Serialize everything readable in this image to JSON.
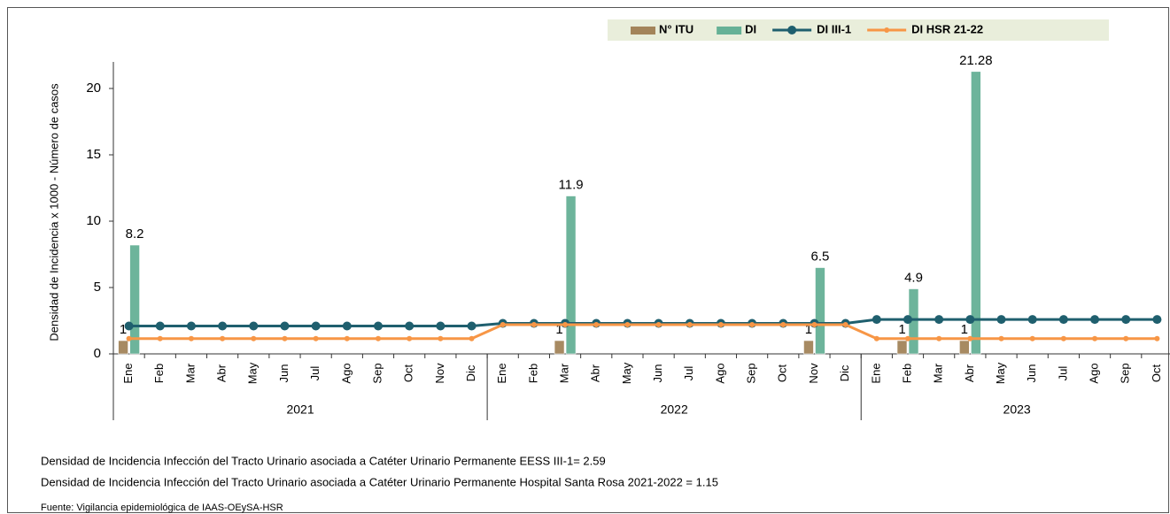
{
  "chart_data": {
    "type": "bar-line",
    "y_label": "Densidad de Incidencia x 1000 - Número de casos",
    "ylim": [
      0,
      22
    ],
    "yticks": [
      0,
      5,
      10,
      15,
      20
    ],
    "category_groups": [
      {
        "label": "2021",
        "categories": [
          "Ene",
          "Feb",
          "Mar",
          "Abr",
          "May",
          "Jun",
          "Jul",
          "Ago",
          "Sep",
          "Oct",
          "Nov",
          "Dic"
        ]
      },
      {
        "label": "2022",
        "categories": [
          "Ene",
          "Feb",
          "Mar",
          "Abr",
          "May",
          "Jun",
          "Jul",
          "Ago",
          "Sep",
          "Oct",
          "Nov",
          "Dic"
        ]
      },
      {
        "label": "2023",
        "categories": [
          "Ene",
          "Feb",
          "Mar",
          "Abr",
          "May",
          "Jun",
          "Jul",
          "Ago",
          "Sep",
          "Oct"
        ]
      }
    ],
    "series": [
      {
        "name": "N° ITU",
        "kind": "bar",
        "color": "#a3845a",
        "values": [
          1,
          null,
          null,
          null,
          null,
          null,
          null,
          null,
          null,
          null,
          null,
          null,
          null,
          null,
          1,
          null,
          null,
          null,
          null,
          null,
          null,
          null,
          1,
          null,
          null,
          1,
          null,
          1,
          null,
          null,
          null,
          null,
          null,
          null
        ]
      },
      {
        "name": "DI",
        "kind": "bar",
        "color": "#66b196",
        "values": [
          8.2,
          null,
          null,
          null,
          null,
          null,
          null,
          null,
          null,
          null,
          null,
          null,
          null,
          null,
          11.9,
          null,
          null,
          null,
          null,
          null,
          null,
          null,
          6.5,
          null,
          null,
          4.9,
          null,
          21.28,
          null,
          null,
          null,
          null,
          null,
          null
        ]
      },
      {
        "name": "DI III-1",
        "kind": "line",
        "color": "#1f5f6e",
        "values": [
          2.1,
          2.1,
          2.1,
          2.1,
          2.1,
          2.1,
          2.1,
          2.1,
          2.1,
          2.1,
          2.1,
          2.1,
          2.3,
          2.3,
          2.3,
          2.3,
          2.3,
          2.3,
          2.3,
          2.3,
          2.3,
          2.3,
          2.3,
          2.3,
          2.59,
          2.59,
          2.59,
          2.59,
          2.59,
          2.59,
          2.59,
          2.59,
          2.59,
          2.59
        ]
      },
      {
        "name": "DI HSR 21-22",
        "kind": "line",
        "color": "#f79646",
        "values": [
          1.15,
          1.15,
          1.15,
          1.15,
          1.15,
          1.15,
          1.15,
          1.15,
          1.15,
          1.15,
          1.15,
          1.15,
          2.2,
          2.2,
          2.2,
          2.2,
          2.2,
          2.2,
          2.2,
          2.2,
          2.2,
          2.2,
          2.2,
          2.2,
          1.15,
          1.15,
          1.15,
          1.15,
          1.15,
          1.15,
          1.15,
          1.15,
          1.15,
          1.15
        ]
      }
    ],
    "notes": [
      "Densidad de Incidencia Infección del  Tracto Urinario asociada a  Catéter Urinario Permanente  EESS III-1= 2.59",
      "Densidad de Incidencia Infección del  Tracto Urinario asociada a  Catéter Urinario Permanente  Hospital Santa Rosa 2021-2022  = 1.15"
    ],
    "source": "Fuente: Vigilancia epidemiológica de IAAS-OEySA-HSR"
  }
}
